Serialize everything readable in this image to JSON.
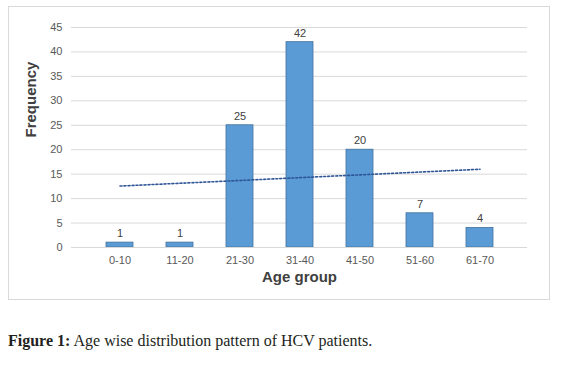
{
  "chart_data": {
    "type": "bar",
    "caption": "Figure 1: Age wise distribution pattern of HCV patients.",
    "x_label": "Age group",
    "y_label": "Frequency",
    "categories": [
      "0-10",
      "11-20",
      "21-30",
      "31-40",
      "41-50",
      "51-60",
      "61-70"
    ],
    "series": [
      {
        "type": "bar",
        "color": "#5b9bd5",
        "values": [
          1,
          1,
          25,
          42,
          20,
          7,
          4
        ]
      },
      {
        "type": "line",
        "line_style": "dotted",
        "color": "#2f5597",
        "values": [
          12.57,
          13.14,
          13.71,
          14.29,
          14.86,
          15.43,
          16.0
        ]
      }
    ],
    "ylim": [
      0,
      45
    ],
    "yticks": [
      0,
      5,
      10,
      15,
      20,
      25,
      30,
      35,
      40,
      45
    ],
    "grid": true,
    "data_labels": true
  }
}
